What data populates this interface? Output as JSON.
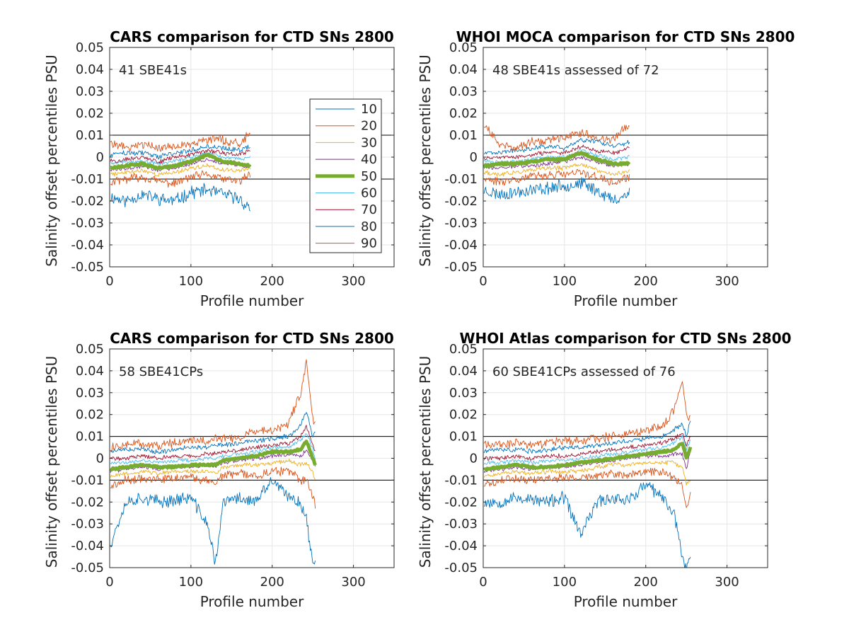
{
  "figure": {
    "legend_entries": [
      {
        "label": "10",
        "color": "#0072BD"
      },
      {
        "label": "20",
        "color": "#D95319"
      },
      {
        "label": "30",
        "color": "#EDB120"
      },
      {
        "label": "40",
        "color": "#7E2F8E"
      },
      {
        "label": "50",
        "color": "#77AC30"
      },
      {
        "label": "60",
        "color": "#4DBEEE"
      },
      {
        "label": "70",
        "color": "#A2142F"
      },
      {
        "label": "80",
        "color": "#0072BD"
      },
      {
        "label": "90",
        "color": "#D95319"
      }
    ]
  },
  "chart_data": [
    {
      "type": "line",
      "title": "CARS comparison for CTD SNs 2800",
      "annotation": "41 SBE41s",
      "xlabel": "Profile number",
      "ylabel": "Salinity offset percentiles PSU",
      "xlim": [
        0,
        350
      ],
      "ylim": [
        -0.05,
        0.05
      ],
      "xticks": [
        "0",
        "100",
        "200",
        "300"
      ],
      "yticks": [
        "-0.05",
        "-0.04",
        "-0.03",
        "-0.02",
        "-0.01",
        "0",
        "0.01",
        "0.02",
        "0.03",
        "0.04",
        "0.05"
      ],
      "reference_lines": [
        0.01,
        -0.01
      ],
      "legend": true,
      "seed": 11,
      "x_points": [
        0,
        20,
        40,
        60,
        80,
        100,
        120,
        140,
        160,
        173
      ],
      "series": [
        {
          "name": "10",
          "values": [
            -0.018,
            -0.02,
            -0.017,
            -0.019,
            -0.02,
            -0.016,
            -0.015,
            -0.017,
            -0.019,
            -0.024
          ]
        },
        {
          "name": "20",
          "values": [
            -0.012,
            -0.01,
            -0.009,
            -0.011,
            -0.012,
            -0.009,
            -0.008,
            -0.01,
            -0.011,
            -0.008
          ]
        },
        {
          "name": "30",
          "values": [
            -0.008,
            -0.007,
            -0.006,
            -0.008,
            -0.007,
            -0.005,
            -0.004,
            -0.006,
            -0.006,
            -0.005
          ]
        },
        {
          "name": "40",
          "values": [
            -0.006,
            -0.005,
            -0.004,
            -0.006,
            -0.005,
            -0.003,
            -0.001,
            -0.003,
            -0.004,
            -0.004
          ]
        },
        {
          "name": "50",
          "values": [
            -0.005,
            -0.004,
            -0.003,
            -0.005,
            -0.004,
            -0.002,
            0.001,
            -0.002,
            -0.003,
            -0.004
          ]
        },
        {
          "name": "60",
          "values": [
            -0.003,
            -0.002,
            -0.002,
            -0.003,
            -0.002,
            0.0,
            0.002,
            0.0,
            -0.001,
            0.0
          ]
        },
        {
          "name": "70",
          "values": [
            -0.002,
            -0.001,
            0.0,
            -0.002,
            0.0,
            0.001,
            0.003,
            0.002,
            0.001,
            0.003
          ]
        },
        {
          "name": "80",
          "values": [
            0.001,
            0.002,
            0.002,
            0.0,
            0.002,
            0.003,
            0.005,
            0.004,
            0.003,
            0.005
          ]
        },
        {
          "name": "90",
          "values": [
            0.007,
            0.004,
            0.006,
            0.004,
            0.005,
            0.006,
            0.008,
            0.008,
            0.006,
            0.011
          ]
        }
      ]
    },
    {
      "type": "line",
      "title": "WHOI MOCA comparison for CTD SNs 2800",
      "annotation": "48 SBE41s assessed of 72",
      "xlabel": "Profile number",
      "ylabel": "Salinity offset percentiles PSU",
      "xlim": [
        0,
        350
      ],
      "ylim": [
        -0.05,
        0.05
      ],
      "xticks": [
        "0",
        "100",
        "200",
        "300"
      ],
      "yticks": [
        "-0.05",
        "-0.04",
        "-0.03",
        "-0.02",
        "-0.01",
        "0",
        "0.01",
        "0.02",
        "0.03",
        "0.04",
        "0.05"
      ],
      "reference_lines": [
        0.01,
        -0.01
      ],
      "legend": false,
      "seed": 23,
      "x_points": [
        0,
        20,
        40,
        60,
        80,
        100,
        120,
        140,
        160,
        180
      ],
      "series": [
        {
          "name": "10",
          "values": [
            -0.015,
            -0.017,
            -0.016,
            -0.015,
            -0.014,
            -0.013,
            -0.012,
            -0.015,
            -0.02,
            -0.016
          ]
        },
        {
          "name": "20",
          "values": [
            -0.01,
            -0.011,
            -0.01,
            -0.009,
            -0.008,
            -0.008,
            -0.007,
            -0.009,
            -0.012,
            -0.009
          ]
        },
        {
          "name": "30",
          "values": [
            -0.007,
            -0.008,
            -0.007,
            -0.006,
            -0.005,
            -0.005,
            -0.003,
            -0.006,
            -0.008,
            -0.006
          ]
        },
        {
          "name": "40",
          "values": [
            -0.005,
            -0.005,
            -0.004,
            -0.004,
            -0.003,
            -0.002,
            0.0,
            -0.002,
            -0.004,
            -0.003
          ]
        },
        {
          "name": "50",
          "values": [
            -0.004,
            -0.003,
            -0.003,
            -0.002,
            -0.001,
            -0.001,
            0.002,
            -0.001,
            -0.003,
            -0.003
          ]
        },
        {
          "name": "60",
          "values": [
            -0.002,
            -0.002,
            -0.002,
            -0.001,
            0.0,
            0.0,
            0.003,
            0.001,
            -0.001,
            0.0
          ]
        },
        {
          "name": "70",
          "values": [
            -0.001,
            0.0,
            0.0,
            0.001,
            0.002,
            0.002,
            0.005,
            0.003,
            0.002,
            0.004
          ]
        },
        {
          "name": "80",
          "values": [
            0.002,
            0.002,
            0.003,
            0.004,
            0.005,
            0.004,
            0.008,
            0.007,
            0.005,
            0.007
          ]
        },
        {
          "name": "90",
          "values": [
            0.016,
            0.006,
            0.004,
            0.007,
            0.008,
            0.009,
            0.011,
            0.009,
            0.008,
            0.015
          ]
        }
      ]
    },
    {
      "type": "line",
      "title": "CARS comparison for CTD SNs 2800",
      "annotation": "58 SBE41CPs",
      "xlabel": "Profile number",
      "ylabel": "Salinity offset percentiles PSU",
      "xlim": [
        0,
        350
      ],
      "ylim": [
        -0.05,
        0.05
      ],
      "xticks": [
        "0",
        "100",
        "200",
        "300"
      ],
      "yticks": [
        "-0.05",
        "-0.04",
        "-0.03",
        "-0.02",
        "-0.01",
        "0",
        "0.01",
        "0.02",
        "0.03",
        "0.04",
        "0.05"
      ],
      "reference_lines": [
        0.01,
        -0.01
      ],
      "legend": false,
      "seed": 37,
      "x_points": [
        0,
        20,
        40,
        60,
        80,
        100,
        120,
        130,
        140,
        160,
        180,
        200,
        220,
        235,
        242,
        250,
        253
      ],
      "series": [
        {
          "name": "10",
          "values": [
            -0.04,
            -0.02,
            -0.018,
            -0.02,
            -0.019,
            -0.018,
            -0.03,
            -0.048,
            -0.02,
            -0.018,
            -0.02,
            -0.01,
            -0.018,
            -0.02,
            -0.028,
            -0.048,
            -0.049
          ]
        },
        {
          "name": "20",
          "values": [
            -0.012,
            -0.01,
            -0.009,
            -0.01,
            -0.009,
            -0.009,
            -0.01,
            -0.011,
            -0.008,
            -0.007,
            -0.008,
            -0.006,
            -0.006,
            -0.01,
            -0.01,
            -0.017,
            -0.022
          ]
        },
        {
          "name": "30",
          "values": [
            -0.008,
            -0.007,
            -0.006,
            -0.007,
            -0.006,
            -0.006,
            -0.006,
            -0.007,
            -0.004,
            -0.003,
            -0.003,
            -0.002,
            -0.001,
            -0.003,
            -0.002,
            -0.006,
            -0.01
          ]
        },
        {
          "name": "40",
          "values": [
            -0.006,
            -0.005,
            -0.004,
            -0.005,
            -0.004,
            -0.004,
            -0.003,
            -0.004,
            -0.002,
            -0.001,
            0.0,
            0.001,
            0.002,
            0.001,
            0.004,
            -0.001,
            -0.004
          ]
        },
        {
          "name": "50",
          "values": [
            -0.005,
            -0.004,
            -0.003,
            -0.004,
            -0.004,
            -0.003,
            -0.003,
            -0.003,
            -0.001,
            0.0,
            0.001,
            0.003,
            0.003,
            0.004,
            0.008,
            0.0,
            -0.003
          ]
        },
        {
          "name": "60",
          "values": [
            -0.002,
            -0.002,
            -0.001,
            -0.002,
            -0.001,
            -0.001,
            0.0,
            0.0,
            0.001,
            0.002,
            0.003,
            0.005,
            0.005,
            0.008,
            0.012,
            0.004,
            0.0
          ]
        },
        {
          "name": "70",
          "values": [
            0.0,
            0.0,
            0.001,
            0.0,
            0.001,
            0.001,
            0.002,
            0.002,
            0.003,
            0.004,
            0.005,
            0.006,
            0.007,
            0.01,
            0.015,
            0.006,
            0.003
          ]
        },
        {
          "name": "80",
          "values": [
            0.003,
            0.004,
            0.004,
            0.003,
            0.004,
            0.005,
            0.005,
            0.006,
            0.006,
            0.007,
            0.008,
            0.009,
            0.01,
            0.015,
            0.021,
            0.01,
            0.012
          ]
        },
        {
          "name": "90",
          "values": [
            0.005,
            0.006,
            0.007,
            0.006,
            0.007,
            0.008,
            0.008,
            0.009,
            0.009,
            0.01,
            0.012,
            0.013,
            0.016,
            0.03,
            0.044,
            0.018,
            0.015
          ]
        }
      ]
    },
    {
      "type": "line",
      "title": "WHOI Atlas comparison for CTD SNs 2800",
      "annotation": "60 SBE41CPs assessed of 76",
      "xlabel": "Profile number",
      "ylabel": "Salinity offset percentiles PSU",
      "xlim": [
        0,
        350
      ],
      "ylim": [
        -0.05,
        0.05
      ],
      "xticks": [
        "0",
        "100",
        "200",
        "300"
      ],
      "yticks": [
        "-0.05",
        "-0.04",
        "-0.03",
        "-0.02",
        "-0.01",
        "0",
        "0.01",
        "0.02",
        "0.03",
        "0.04",
        "0.05"
      ],
      "reference_lines": [
        0.01,
        -0.01
      ],
      "legend": false,
      "seed": 53,
      "x_points": [
        0,
        20,
        40,
        60,
        80,
        100,
        120,
        140,
        160,
        180,
        200,
        220,
        235,
        245,
        250,
        255
      ],
      "series": [
        {
          "name": "10",
          "values": [
            -0.02,
            -0.02,
            -0.018,
            -0.019,
            -0.02,
            -0.018,
            -0.035,
            -0.02,
            -0.018,
            -0.019,
            -0.012,
            -0.018,
            -0.025,
            -0.045,
            -0.05,
            -0.045
          ]
        },
        {
          "name": "20",
          "values": [
            -0.012,
            -0.01,
            -0.009,
            -0.01,
            -0.009,
            -0.009,
            -0.009,
            -0.008,
            -0.007,
            -0.008,
            -0.006,
            -0.006,
            -0.009,
            -0.012,
            -0.023,
            -0.015
          ]
        },
        {
          "name": "30",
          "values": [
            -0.008,
            -0.007,
            -0.006,
            -0.007,
            -0.006,
            -0.006,
            -0.006,
            -0.004,
            -0.003,
            -0.003,
            -0.002,
            -0.002,
            -0.002,
            -0.004,
            -0.012,
            -0.01
          ]
        },
        {
          "name": "40",
          "values": [
            -0.006,
            -0.005,
            -0.004,
            -0.005,
            -0.004,
            -0.004,
            -0.003,
            -0.002,
            -0.001,
            0.0,
            0.001,
            0.001,
            0.002,
            0.002,
            -0.005,
            0.004
          ]
        },
        {
          "name": "50",
          "values": [
            -0.005,
            -0.004,
            -0.003,
            -0.004,
            -0.004,
            -0.003,
            -0.002,
            -0.001,
            0.0,
            0.001,
            0.002,
            0.003,
            0.004,
            0.007,
            0.0,
            0.005
          ]
        },
        {
          "name": "60",
          "values": [
            -0.002,
            -0.002,
            -0.001,
            -0.002,
            -0.001,
            -0.001,
            0.0,
            0.001,
            0.002,
            0.003,
            0.004,
            0.005,
            0.007,
            0.01,
            0.004,
            0.008
          ]
        },
        {
          "name": "70",
          "values": [
            0.0,
            0.0,
            0.001,
            0.0,
            0.001,
            0.001,
            0.002,
            0.003,
            0.004,
            0.005,
            0.006,
            0.007,
            0.009,
            0.012,
            0.006,
            0.01
          ]
        },
        {
          "name": "80",
          "values": [
            0.003,
            0.004,
            0.004,
            0.003,
            0.004,
            0.005,
            0.005,
            0.006,
            0.007,
            0.008,
            0.009,
            0.01,
            0.013,
            0.016,
            0.01,
            0.018
          ]
        },
        {
          "name": "90",
          "values": [
            0.006,
            0.006,
            0.007,
            0.006,
            0.007,
            0.008,
            0.008,
            0.009,
            0.01,
            0.011,
            0.013,
            0.015,
            0.022,
            0.036,
            0.02,
            0.018
          ]
        }
      ]
    }
  ]
}
